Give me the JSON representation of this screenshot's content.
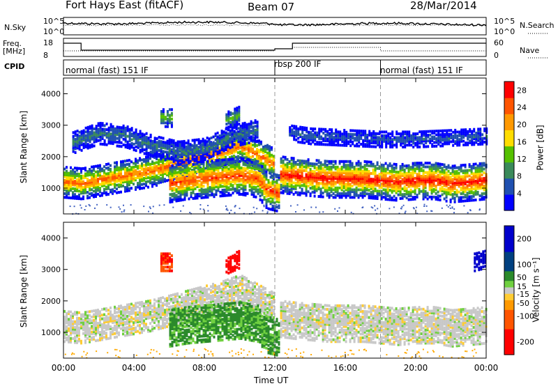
{
  "header": {
    "station": "Fort Hays East (fitACF)",
    "beam": "Beam 07",
    "date": "28/Mar/2014"
  },
  "strips": {
    "nsky_label": "N.Sky",
    "nsky_ticks": [
      "10^5",
      "10^0"
    ],
    "nsearch_label": "N.Search",
    "nsearch_ticks": [
      "10^5",
      "10^0"
    ],
    "freq_label": "Freq.",
    "freq_unit": "[MHz]",
    "freq_ticks": [
      "18",
      "8"
    ],
    "nave_label": "Nave",
    "nave_ticks": [
      "60",
      "0"
    ],
    "cpid_label": "CPID",
    "cpid_segments": [
      {
        "name": "normal (fast) 151 IF",
        "start_hour": 0.0
      },
      {
        "name": "rbsp 200 IF",
        "start_hour": 12.0
      },
      {
        "name": "normal (fast) 151 IF",
        "start_hour": 18.0
      }
    ]
  },
  "colors": {
    "power_scale": [
      "#0000ff",
      "#2050b0",
      "#3a8a5a",
      "#55c000",
      "#ffdd00",
      "#ff9900",
      "#ff5500",
      "#ff0000"
    ],
    "velocity_scale": [
      "#0000cc",
      "#004080",
      "#2b8a2b",
      "#70d040",
      "#c8c8c8",
      "#ffcc33",
      "#ff9900",
      "#ff5500",
      "#ff0000"
    ]
  },
  "chart_data": [
    {
      "type": "heatmap",
      "name": "power",
      "xlabel": "",
      "ylabel": "Slant Range [km]",
      "xlim": [
        0,
        24
      ],
      "ylim": [
        180,
        4500
      ],
      "yticks": [
        1000,
        2000,
        3000,
        4000
      ],
      "colorbar": {
        "label": "Power [dB]",
        "ticks": [
          4,
          8,
          12,
          16,
          20,
          24,
          28
        ],
        "range": [
          0,
          30
        ]
      },
      "bands": [
        {
          "t": [
            0,
            1,
            2,
            3,
            4,
            5,
            6,
            7,
            8,
            9,
            10,
            11,
            12
          ],
          "center_km": [
            1250,
            1200,
            1300,
            1400,
            1500,
            1600,
            1750,
            1900,
            2050,
            2200,
            2400,
            2100,
            1800
          ],
          "width_km": 500,
          "peak_db": 24
        },
        {
          "t": [
            6,
            7,
            8,
            9,
            10,
            11,
            11.5,
            12.2
          ],
          "center_km": [
            1200,
            1300,
            1350,
            1400,
            1450,
            1350,
            1000,
            900
          ],
          "width_km": 600,
          "peak_db": 26
        },
        {
          "t": [
            12.3,
            13,
            14,
            15,
            16,
            17,
            18,
            19,
            20,
            21,
            22,
            23,
            24
          ],
          "center_km": [
            1500,
            1450,
            1400,
            1350,
            1350,
            1350,
            1300,
            1250,
            1300,
            1300,
            1200,
            1250,
            1300
          ],
          "width_km": 600,
          "peak_db": 28
        },
        {
          "t": [
            0.5,
            2,
            3.5,
            5,
            6.5,
            8,
            9.5,
            11
          ],
          "center_km": [
            2500,
            2800,
            2700,
            2400,
            2200,
            2300,
            2700,
            2900
          ],
          "width_km": 350,
          "peak_db": 8
        },
        {
          "t": [
            12.8,
            14,
            16,
            18,
            20,
            22,
            24
          ],
          "center_km": [
            2800,
            2700,
            2650,
            2600,
            2600,
            2650,
            2700
          ],
          "width_km": 250,
          "peak_db": 6
        },
        {
          "t": [
            5.5,
            6.2
          ],
          "center_km": [
            3300,
            3300
          ],
          "width_km": 300,
          "peak_db": 14
        },
        {
          "t": [
            9.2,
            10
          ],
          "center_km": [
            3200,
            3400
          ],
          "width_km": 300,
          "peak_db": 12
        }
      ]
    },
    {
      "type": "heatmap",
      "name": "velocity",
      "xlabel": "Time UT",
      "ylabel": "Slant Range [km]",
      "xlim": [
        0,
        24
      ],
      "ylim": [
        180,
        4500
      ],
      "yticks": [
        1000,
        2000,
        3000,
        4000
      ],
      "xticks": [
        "00:00",
        "04:00",
        "08:00",
        "12:00",
        "16:00",
        "20:00",
        "00:00"
      ],
      "colorbar": {
        "label": "Velocity [m s⁻¹]",
        "ticks": [
          200,
          100,
          50,
          15,
          -15,
          -50,
          -100,
          -200
        ],
        "range": [
          -250,
          250
        ]
      },
      "bands": [
        {
          "t": [
            0,
            1,
            2,
            3,
            4,
            5,
            6,
            7,
            8,
            9,
            10,
            11,
            12
          ],
          "center_km": [
            1250,
            1200,
            1300,
            1400,
            1500,
            1600,
            1750,
            1900,
            2050,
            2200,
            2400,
            2100,
            1800
          ],
          "width_km": 500,
          "vel": 0
        },
        {
          "t": [
            6,
            7,
            8,
            9,
            10,
            11,
            11.5,
            12.2
          ],
          "center_km": [
            1200,
            1300,
            1350,
            1400,
            1450,
            1350,
            1000,
            900
          ],
          "width_km": 600,
          "vel": 40
        },
        {
          "t": [
            12.3,
            13,
            14,
            15,
            16,
            17,
            18,
            19,
            20,
            21,
            22,
            23,
            24
          ],
          "center_km": [
            1500,
            1450,
            1400,
            1350,
            1350,
            1350,
            1300,
            1250,
            1300,
            1300,
            1200,
            1250,
            1300
          ],
          "width_km": 600,
          "vel": 0
        },
        {
          "t": [
            5.5,
            6.2
          ],
          "center_km": [
            3300,
            3300
          ],
          "width_km": 300,
          "vel": -150
        },
        {
          "t": [
            9.2,
            10
          ],
          "center_km": [
            3200,
            3400
          ],
          "width_km": 300,
          "vel": -180
        },
        {
          "t": [
            23.3,
            24
          ],
          "center_km": [
            3300,
            3400
          ],
          "width_km": 300,
          "vel": 200
        }
      ]
    }
  ]
}
